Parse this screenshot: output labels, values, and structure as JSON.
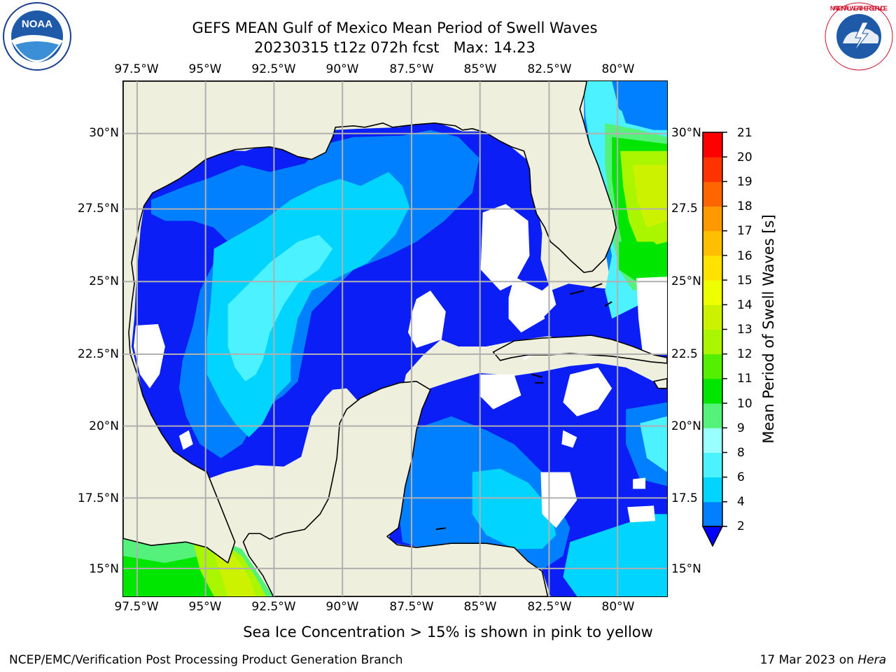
{
  "title": {
    "line1": "GEFS MEAN Gulf of Mexico Mean Period of Swell Waves",
    "line2": "20230315 t12z 072h fcst   Max: 14.23"
  },
  "map": {
    "projection": "lat-lon",
    "lon_range": [
      -98.0,
      -78.0
    ],
    "lat_range": [
      14.0,
      31.8
    ],
    "grid": true,
    "land_color": "#efefdd",
    "ocean_missing_color": "#ffffff",
    "lon_ticks": [
      "97.5°W",
      "95°W",
      "92.5°W",
      "90°W",
      "87.5°W",
      "85°W",
      "82.5°W",
      "80°W"
    ],
    "lat_ticks_left": [
      "30°N",
      "27.5°N",
      "25°N",
      "22.5°N",
      "20°N",
      "17.5°N",
      "15°N"
    ],
    "lat_ticks_right": [
      "30°N",
      "27.5",
      "25°N",
      "22.5",
      "20°N",
      "17.5",
      "15°N"
    ]
  },
  "colorbar": {
    "label": "Mean Period of Swell Waves [s]",
    "ticks": [
      "2",
      "4",
      "6",
      "8",
      "9",
      "10",
      "11",
      "12",
      "13",
      "14",
      "15",
      "16",
      "17",
      "18",
      "19",
      "20",
      "21"
    ],
    "colors": [
      "#0026ff",
      "#0080ff",
      "#00d4ff",
      "#4cf2ff",
      "#99ffff",
      "#54f27a",
      "#00e600",
      "#54ee00",
      "#aaf600",
      "#ccf200",
      "#eeff00",
      "#ffe200",
      "#ffbf00",
      "#ff9900",
      "#ff6600",
      "#ff3300",
      "#ff0000"
    ],
    "extend": "min",
    "extend_color": "#0000ff"
  },
  "subnote": "Sea Ice Concentration > 15% is shown in pink to yellow",
  "footer": {
    "left": "NCEP/EMC/Verification Post Processing Product Generation Branch",
    "date": "17 Mar 2023 on ",
    "machine": "Hera"
  },
  "logos": {
    "left": "NOAA",
    "right": "NATIONAL WEATHER SERVICE"
  }
}
